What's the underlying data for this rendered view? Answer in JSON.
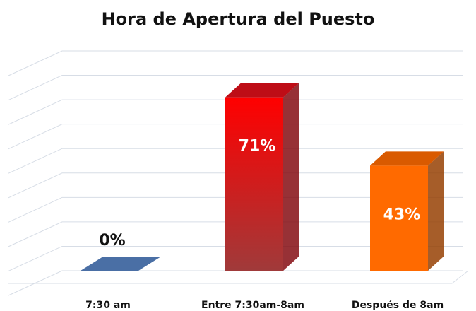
{
  "chart_data": {
    "type": "bar3d",
    "title": "Hora de Apertura del Puesto",
    "categories": [
      "7:30 am",
      "Entre 7:30am-8am",
      "Después de 8am"
    ],
    "values": [
      0,
      71,
      43
    ],
    "value_labels": [
      "0%",
      "71%",
      "43%"
    ],
    "colors": [
      "#4a6fa5",
      "#e0101a",
      "#ff6a00"
    ],
    "ylim": [
      0,
      90
    ],
    "yticks": [
      0,
      10,
      20,
      30,
      40,
      50,
      60,
      70,
      80,
      90
    ],
    "grid": true
  }
}
